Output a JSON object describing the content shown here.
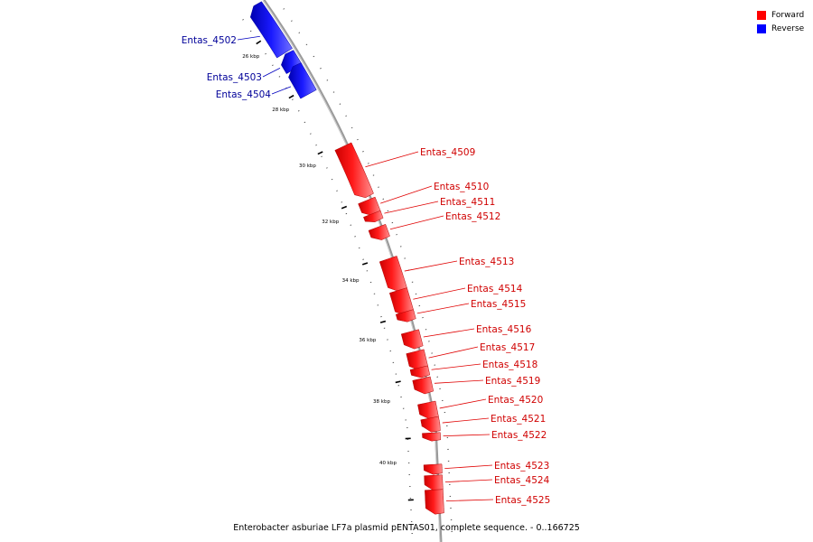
{
  "legend": {
    "forward_label": "Forward",
    "reverse_label": "Reverse",
    "forward_color": "#ff0000",
    "reverse_color": "#0000ff"
  },
  "caption": "Enterobacter asburiae LF7a plasmid pENTAS01, complete sequence. - 0..166725",
  "axis_ticks": [
    "26 kbp",
    "28 kbp",
    "30 kbp",
    "32 kbp",
    "34 kbp",
    "36 kbp",
    "38 kbp",
    "40 kbp"
  ],
  "genes": [
    {
      "name": "Entas_4502",
      "strand": "reverse"
    },
    {
      "name": "Entas_4503",
      "strand": "reverse"
    },
    {
      "name": "Entas_4504",
      "strand": "reverse"
    },
    {
      "name": "Entas_4509",
      "strand": "forward"
    },
    {
      "name": "Entas_4510",
      "strand": "forward"
    },
    {
      "name": "Entas_4511",
      "strand": "forward"
    },
    {
      "name": "Entas_4512",
      "strand": "forward"
    },
    {
      "name": "Entas_4513",
      "strand": "forward"
    },
    {
      "name": "Entas_4514",
      "strand": "forward"
    },
    {
      "name": "Entas_4515",
      "strand": "forward"
    },
    {
      "name": "Entas_4516",
      "strand": "forward"
    },
    {
      "name": "Entas_4517",
      "strand": "forward"
    },
    {
      "name": "Entas_4518",
      "strand": "forward"
    },
    {
      "name": "Entas_4519",
      "strand": "forward"
    },
    {
      "name": "Entas_4520",
      "strand": "forward"
    },
    {
      "name": "Entas_4521",
      "strand": "forward"
    },
    {
      "name": "Entas_4522",
      "strand": "forward"
    },
    {
      "name": "Entas_4523",
      "strand": "forward"
    },
    {
      "name": "Entas_4524",
      "strand": "forward"
    },
    {
      "name": "Entas_4525",
      "strand": "forward"
    }
  ]
}
